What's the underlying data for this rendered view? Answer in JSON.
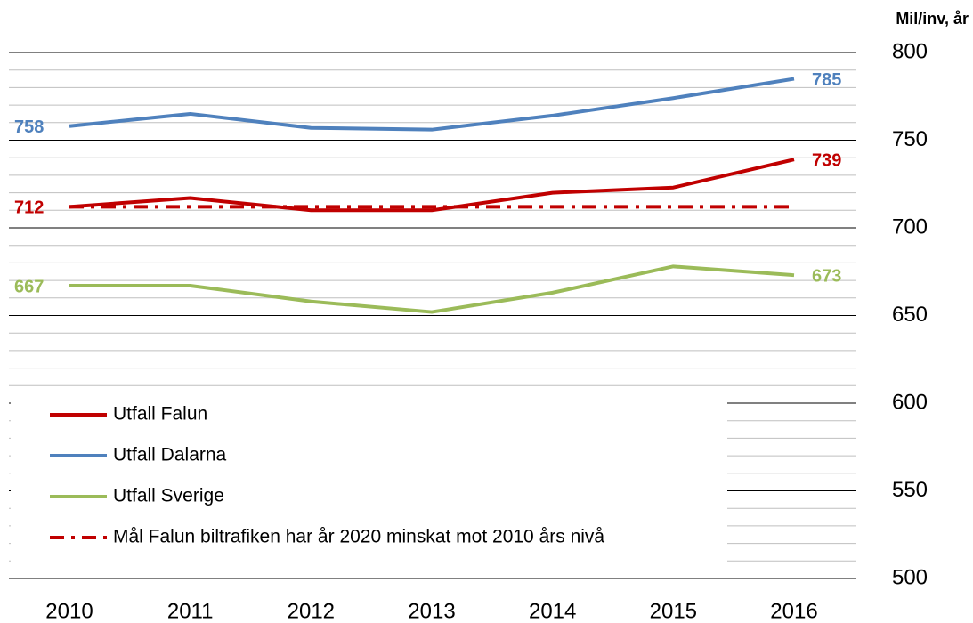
{
  "chart_data": {
    "type": "line",
    "y_axis_label": "Mil/inv, år",
    "categories": [
      "2010",
      "2011",
      "2012",
      "2013",
      "2014",
      "2015",
      "2016"
    ],
    "series": [
      {
        "name": "Utfall Falun",
        "color": "#c00000",
        "values": [
          712,
          717,
          710,
          710,
          720,
          723,
          739
        ],
        "end_labels": true
      },
      {
        "name": "Utfall Dalarna",
        "color": "#4f81bd",
        "values": [
          758,
          765,
          757,
          756,
          764,
          774,
          785
        ],
        "end_labels": true
      },
      {
        "name": "Utfall Sverige",
        "color": "#9bbb59",
        "values": [
          667,
          667,
          658,
          652,
          663,
          678,
          673
        ],
        "end_labels": true
      },
      {
        "name": "Mål Falun biltrafiken har år 2020 minskat mot 2010 års nivå",
        "color": "#c00000",
        "values": [
          712,
          712,
          712,
          712,
          712,
          712,
          712
        ],
        "dash": "dashdot"
      }
    ],
    "ylim": [
      500,
      800
    ],
    "yticks": [
      500,
      550,
      600,
      650,
      700,
      750,
      800
    ],
    "yminorticks": [
      510,
      520,
      530,
      540,
      560,
      570,
      580,
      590,
      610,
      620,
      630,
      640,
      660,
      670,
      680,
      690,
      710,
      720,
      730,
      740,
      760,
      770,
      780,
      790
    ],
    "y_axis_side": "right",
    "grid": true,
    "legend": "lower left"
  }
}
